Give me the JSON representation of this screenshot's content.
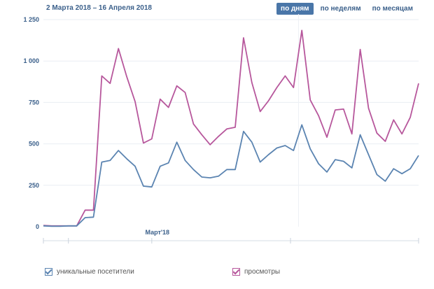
{
  "header": {
    "date_range": "2 Марта 2018 – 16 Апреля 2018",
    "period_buttons": [
      {
        "label": "по дням",
        "active": true
      },
      {
        "label": "по неделям",
        "active": false
      },
      {
        "label": "по месяцам",
        "active": false
      }
    ]
  },
  "legend": {
    "unique_visitors": "уникальные посетители",
    "views": "просмотры"
  },
  "chart_data": {
    "type": "line",
    "xlabel": "",
    "ylabel": "",
    "ylim": [
      0,
      1250
    ],
    "yticks": [
      0,
      250,
      500,
      750,
      1000,
      1250
    ],
    "ytick_labels": [
      "0",
      "250",
      "500",
      "750",
      "1 000",
      "1 250"
    ],
    "x_tick_label": "Март'18",
    "x_tick_index": 14,
    "grid": true,
    "series": [
      {
        "name": "уникальные посетители",
        "color": "#5b84b1",
        "values": [
          5,
          3,
          3,
          5,
          5,
          55,
          58,
          390,
          400,
          460,
          410,
          365,
          245,
          240,
          365,
          385,
          510,
          400,
          345,
          300,
          295,
          305,
          345,
          345,
          575,
          510,
          390,
          435,
          475,
          490,
          460,
          615,
          470,
          380,
          330,
          405,
          395,
          355,
          555,
          435,
          315,
          275,
          350,
          320,
          350,
          430
        ]
      },
      {
        "name": "просмотры",
        "color": "#b7579c",
        "values": [
          8,
          5,
          5,
          5,
          5,
          100,
          100,
          910,
          865,
          1075,
          905,
          755,
          505,
          530,
          770,
          720,
          850,
          810,
          620,
          555,
          495,
          545,
          590,
          600,
          1140,
          870,
          695,
          760,
          840,
          910,
          840,
          1185,
          765,
          670,
          540,
          705,
          710,
          560,
          1070,
          715,
          565,
          515,
          645,
          560,
          660,
          865
        ]
      }
    ]
  }
}
